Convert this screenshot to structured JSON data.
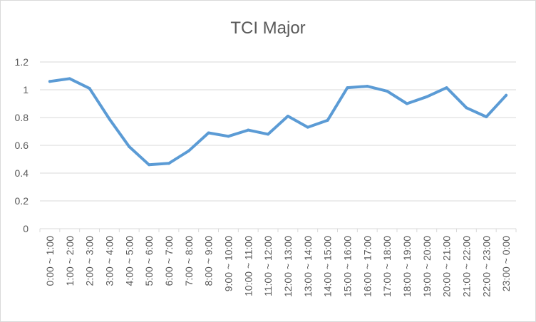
{
  "chart_data": {
    "type": "line",
    "title": "TCI Major",
    "xlabel": "",
    "ylabel": "",
    "categories": [
      "0:00 ~ 1:00",
      "1:00 ~ 2:00",
      "2:00 ~ 3:00",
      "3:00 ~ 4:00",
      "4:00 ~ 5:00",
      "5:00 ~ 6:00",
      "6:00 ~ 7:00",
      "7:00 ~ 8:00",
      "8:00 ~ 9:00",
      "9:00 ~ 10:00",
      "10:00 ~ 11:00",
      "11:00 ~ 12:00",
      "12:00 ~ 13:00",
      "13:00 ~ 14:00",
      "14:00 ~ 15:00",
      "15:00 ~ 16:00",
      "16:00 ~ 17:00",
      "17:00 ~ 18:00",
      "18:00 ~ 19:00",
      "19:00 ~ 20:00",
      "20:00 ~ 21:00",
      "21:00 ~ 22:00",
      "22:00 ~ 23:00",
      "23:00 ~ 0:00"
    ],
    "series": [
      {
        "values": [
          1.06,
          1.08,
          1.01,
          0.79,
          0.59,
          0.46,
          0.47,
          0.56,
          0.69,
          0.665,
          0.71,
          0.68,
          0.81,
          0.73,
          0.78,
          1.015,
          1.025,
          0.99,
          0.9,
          0.95,
          1.015,
          0.87,
          0.805,
          0.96
        ],
        "color": "#5b9bd5"
      }
    ],
    "ylim": [
      0,
      1.2
    ],
    "yticks": [
      "0",
      "0.2",
      "0.4",
      "0.6",
      "0.8",
      "1",
      "1.2"
    ],
    "grid": true,
    "legend": "none",
    "colors": {
      "gridline": "#d9d9d9",
      "text": "#595959"
    }
  }
}
